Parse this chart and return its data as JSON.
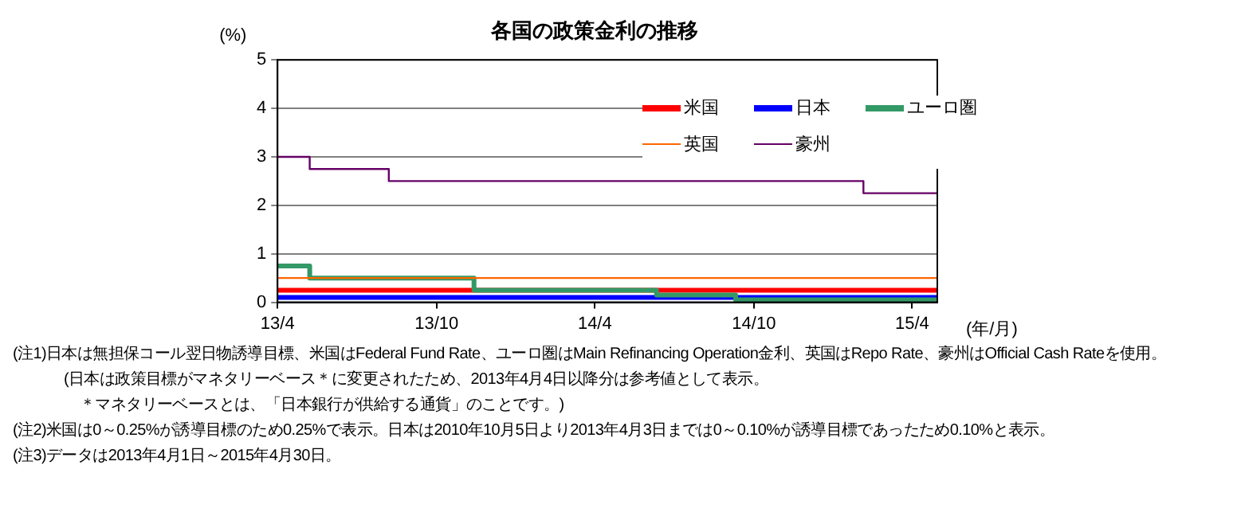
{
  "chart_data": {
    "type": "step",
    "title": "各国の政策金利の推移",
    "ylabel": "(%)",
    "xlabel": "(年/月)",
    "xlim": [
      "2013-04-01",
      "2015-04-30"
    ],
    "xticks": [
      {
        "value": "2013-04",
        "label": "13/4"
      },
      {
        "value": "2013-10",
        "label": "13/10"
      },
      {
        "value": "2014-04",
        "label": "14/4"
      },
      {
        "value": "2014-10",
        "label": "14/10"
      },
      {
        "value": "2015-04",
        "label": "15/4"
      }
    ],
    "ylim": [
      0,
      5
    ],
    "yticks": [
      0,
      1,
      2,
      3,
      4,
      5
    ],
    "grid": "y",
    "legend": "top right",
    "marker": "none",
    "line_style": "solid",
    "series": [
      {
        "name": "米国",
        "color": "#ff0000",
        "x": [
          "2013-04-01",
          "2015-04-30"
        ],
        "values": [
          0.25,
          0.25
        ]
      },
      {
        "name": "日本",
        "color": "#0000ff",
        "x": [
          "2013-04-01",
          "2015-04-30"
        ],
        "values": [
          0.1,
          0.1
        ]
      },
      {
        "name": "ユーロ圏",
        "color": "#339966",
        "x": [
          "2013-04-01",
          "2013-05-08",
          "2013-11-13",
          "2014-06-11",
          "2014-09-10",
          "2015-04-30"
        ],
        "values": [
          0.75,
          0.5,
          0.25,
          0.15,
          0.05,
          0.05
        ]
      },
      {
        "name": "英国",
        "color": "#ff6600",
        "x": [
          "2013-04-01",
          "2015-04-30"
        ],
        "values": [
          0.5,
          0.5
        ]
      },
      {
        "name": "豪州",
        "color": "#660066",
        "x": [
          "2013-04-01",
          "2013-05-08",
          "2013-08-07",
          "2015-02-04",
          "2015-04-30"
        ],
        "values": [
          3,
          2.75,
          2.5,
          2.25,
          2.25
        ]
      }
    ],
    "annotations": [
      "(注1)日本は無担保コール翌日物誘導目標、米国はFederal Fund Rate、ユーロ圏はMain Refinancing Operation金利、英国はRepo Rate、豪州はOfficial Cash Rateを使用。",
      "(日本は政策目標がマネタリーベース＊に変更されたため、2013年4月4日以降分は参考値として表示。",
      "＊マネタリーベースとは、「日本銀行が供給する通貨」のことです。)",
      "(注2)米国は0～0.25%が誘導目標のため0.25%で表示。日本は2010年10月5日より2013年4月3日までは0～0.10%が誘導目標であったため0.10%と表示。",
      "(注3)データは2013年4月1日～2015年4月30日。"
    ]
  }
}
